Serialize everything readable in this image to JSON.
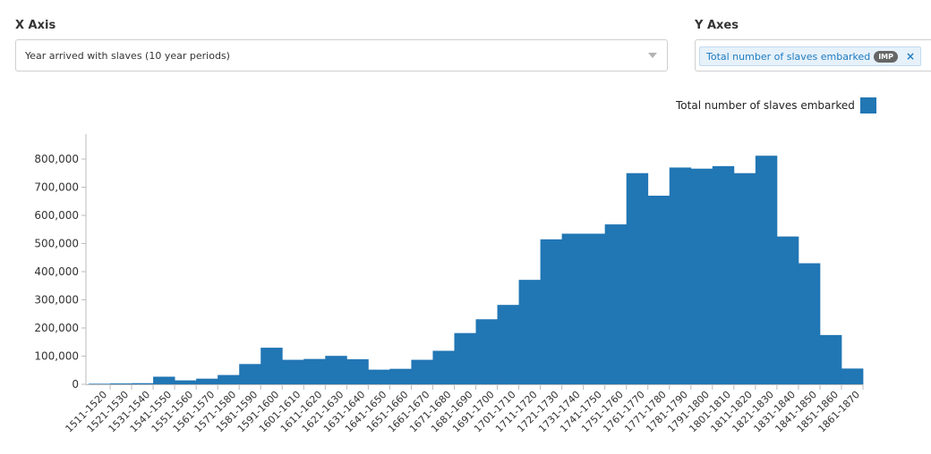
{
  "controls": {
    "x_axis_label": "X Axis",
    "x_axis_value": "Year arrived with slaves (10 year periods)",
    "y_axes_label": "Y Axes",
    "y_axis_tag": "Total number of slaves embarked",
    "y_axis_badge": "IMP",
    "remove_glyph": "×"
  },
  "colors": {
    "bar": "#2176b4",
    "axis": "#bbbbbb",
    "tag_text": "#1f7bbf"
  },
  "chart_data": {
    "type": "bar",
    "categories": [
      "1511-1520",
      "1521-1530",
      "1531-1540",
      "1541-1550",
      "1551-1560",
      "1561-1570",
      "1571-1580",
      "1581-1590",
      "1591-1600",
      "1601-1610",
      "1611-1620",
      "1621-1630",
      "1631-1640",
      "1641-1650",
      "1651-1660",
      "1661-1670",
      "1671-1680",
      "1681-1690",
      "1691-1700",
      "1701-1710",
      "1711-1720",
      "1721-1730",
      "1731-1740",
      "1741-1750",
      "1751-1760",
      "1761-1770",
      "1771-1780",
      "1781-1790",
      "1791-1800",
      "1801-1810",
      "1811-1820",
      "1821-1830",
      "1831-1840",
      "1841-1850",
      "1851-1860",
      "1861-1870"
    ],
    "series": [
      {
        "name": "Total number of slaves embarked",
        "values": [
          2000,
          3000,
          4000,
          27000,
          14000,
          20000,
          33000,
          72000,
          130000,
          87000,
          90000,
          101000,
          89000,
          52000,
          55000,
          87000,
          119000,
          182000,
          231000,
          282000,
          371000,
          515000,
          535000,
          535000,
          568000,
          750000,
          670000,
          770000,
          766000,
          775000,
          750000,
          812000,
          525000,
          430000,
          175000,
          56000
        ]
      }
    ],
    "yticks": [
      0,
      100000,
      200000,
      300000,
      400000,
      500000,
      600000,
      700000,
      800000
    ],
    "ylim": [
      0,
      900000
    ],
    "legend_position": "top-right",
    "grid": false
  }
}
